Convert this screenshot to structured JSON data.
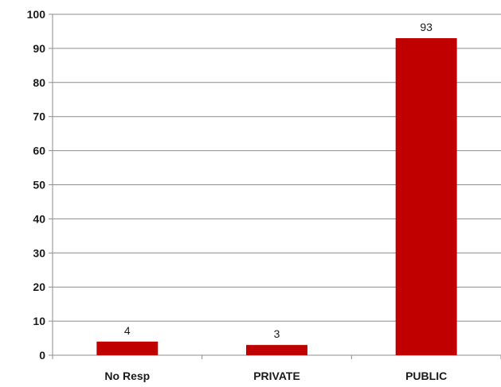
{
  "chart_data": {
    "type": "bar",
    "categories": [
      "No Resp",
      "PRIVATE",
      "PUBLIC"
    ],
    "values": [
      4,
      3,
      93
    ],
    "data_labels": [
      "4",
      "3",
      "93"
    ],
    "ylim": [
      0,
      100
    ],
    "yticks": [
      0,
      10,
      20,
      30,
      40,
      50,
      60,
      70,
      80,
      90,
      100
    ],
    "ytick_labels": [
      "0",
      "10",
      "20",
      "30",
      "40",
      "50",
      "60",
      "70",
      "80",
      "90",
      "100"
    ],
    "grid": true,
    "legend": "none",
    "bar_color": "#c00000",
    "grid_color": "#8c8c8c",
    "axis_color": "#8c8c8c"
  }
}
